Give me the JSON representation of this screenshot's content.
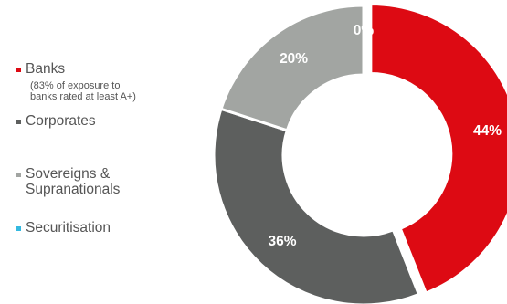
{
  "chart_data": {
    "type": "pie",
    "donut": true,
    "legend_position": "left",
    "slices": [
      {
        "name": "Banks",
        "note": "(83% of exposure to\nbanks rated at least A+)",
        "value": 44,
        "label": "44%",
        "color": "#dd0a13"
      },
      {
        "name": "Corporates",
        "value": 36,
        "label": "36%",
        "color": "#5d5f5e"
      },
      {
        "name": "Sovereigns &\nSupranationals",
        "value": 20,
        "label": "20%",
        "color": "#a2a5a2"
      },
      {
        "name": "Securitisation",
        "value": 0,
        "label": "0%",
        "color": "#34b9e0"
      }
    ]
  }
}
